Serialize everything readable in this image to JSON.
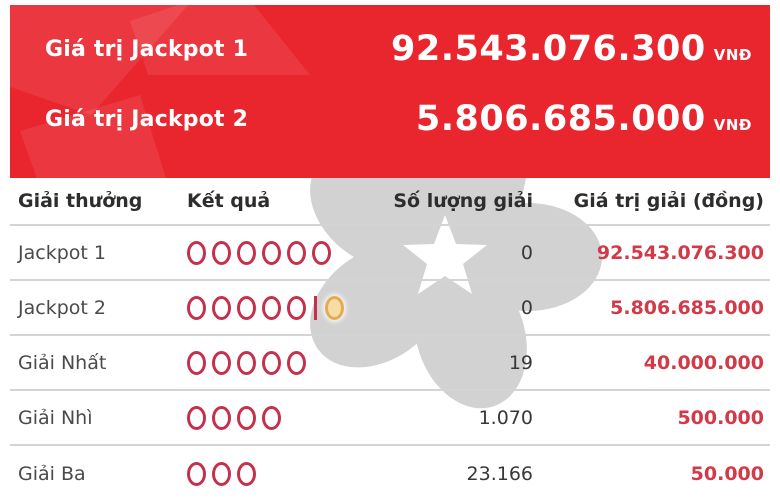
{
  "banner": {
    "jackpots": [
      {
        "label": "Giá trị Jackpot 1",
        "amount": "92.543.076.300",
        "currency": "VNĐ"
      },
      {
        "label": "Giá trị Jackpot 2",
        "amount": "5.806.685.000",
        "currency": "VNĐ"
      }
    ]
  },
  "table": {
    "headers": {
      "prize": "Giải thưởng",
      "result": "Kết quả",
      "count": "Số lượng giải",
      "value": "Giá trị giải (đồng)"
    },
    "rows": [
      {
        "prize": "Jackpot 1",
        "balls": 6,
        "extra_ball": false,
        "count": "0",
        "value": "92.543.076.300"
      },
      {
        "prize": "Jackpot 2",
        "balls": 5,
        "extra_ball": true,
        "count": "0",
        "value": "5.806.685.000"
      },
      {
        "prize": "Giải Nhất",
        "balls": 5,
        "extra_ball": false,
        "count": "19",
        "value": "40.000.000"
      },
      {
        "prize": "Giải Nhì",
        "balls": 4,
        "extra_ball": false,
        "count": "1.070",
        "value": "500.000"
      },
      {
        "prize": "Giải Ba",
        "balls": 3,
        "extra_ball": false,
        "count": "23.166",
        "value": "50.000"
      }
    ]
  },
  "icons": {
    "watermark": "vietlott-flower-logo",
    "result_ball": "red-circle-outline",
    "extra_ball": "orange-circle-outline",
    "ball_separator": "vertical-bar"
  },
  "colors": {
    "banner-red": "#e9252e",
    "ball-red": "#c5304c",
    "value-red": "#d23a48",
    "extra-orange": "#e8a953",
    "extra-orange-fill": "#f5dda5",
    "divider": "#d4d4d4",
    "header-text": "#2d2d2d",
    "body-text": "#4a4a4a",
    "watermark-gray": "#d2d2d2"
  }
}
